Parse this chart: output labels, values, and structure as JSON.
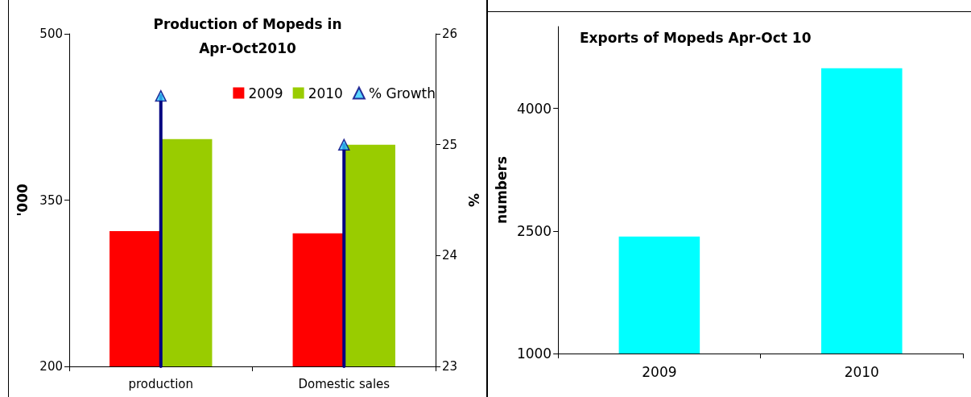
{
  "chart_data": [
    {
      "type": "bar",
      "title": "Production of Mopeds in\nApr-Oct2010",
      "categories": [
        "production",
        "Domestic sales"
      ],
      "ylabel": "'000",
      "y2label": "%",
      "ylim": [
        200,
        500
      ],
      "yticks": [
        200,
        350,
        500
      ],
      "y2lim": [
        23,
        26
      ],
      "y2ticks": [
        23,
        24,
        25,
        26
      ],
      "legend": "top right",
      "grid": false,
      "series": [
        {
          "name": "2009",
          "color": "#ff0000",
          "values": [
            322,
            320
          ]
        },
        {
          "name": "2010",
          "color": "#99cc00",
          "values": [
            405,
            400
          ]
        },
        {
          "name": "% Growth",
          "type": "lollipop",
          "axis": "y2",
          "color": "#33ccff",
          "marker": "triangle",
          "values": [
            25.44,
            25.0
          ]
        }
      ]
    },
    {
      "type": "bar",
      "title": "Exports of Mopeds Apr-Oct 10",
      "categories": [
        "2009",
        "2010"
      ],
      "ylabel": "numbers",
      "ylim": [
        1000,
        5000
      ],
      "yticks": [
        1000,
        2500,
        4000
      ],
      "grid": false,
      "legend": false,
      "color": "#00ffff",
      "values": [
        2430,
        4490
      ]
    }
  ]
}
